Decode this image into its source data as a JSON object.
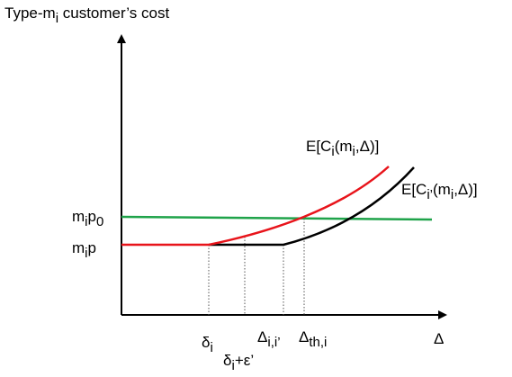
{
  "diagram": {
    "y_axis_label": [
      {
        "text": "Type-m"
      },
      {
        "sub": "i"
      },
      {
        "text": " customer’s cost"
      }
    ],
    "x_axis_label": [
      {
        "text": "Δ"
      }
    ],
    "level_high": [
      {
        "text": "m"
      },
      {
        "sub": "i"
      },
      {
        "text": "p"
      },
      {
        "sub": "0"
      }
    ],
    "level_low": [
      {
        "text": "m"
      },
      {
        "sub": "i"
      },
      {
        "text": "p"
      }
    ],
    "curve_i": [
      {
        "text": "E[C"
      },
      {
        "sub": "i"
      },
      {
        "text": "(m"
      },
      {
        "sub": "i"
      },
      {
        "text": ",Δ)]"
      }
    ],
    "curve_i_prime": [
      {
        "text": "E[C"
      },
      {
        "sub": "i’"
      },
      {
        "text": "(m"
      },
      {
        "sub": "i"
      },
      {
        "text": ",Δ)]"
      }
    ],
    "tick_delta_i": [
      {
        "text": "δ"
      },
      {
        "sub": "i"
      }
    ],
    "tick_delta_eps": [
      {
        "text": "δ"
      },
      {
        "sub": "i"
      },
      {
        "text": "+ε’"
      }
    ],
    "tick_Delta_ii": [
      {
        "text": "Δ"
      },
      {
        "sub": "i,i’"
      }
    ],
    "tick_Delta_th": [
      {
        "text": "Δ"
      },
      {
        "sub": "th,i"
      }
    ]
  }
}
